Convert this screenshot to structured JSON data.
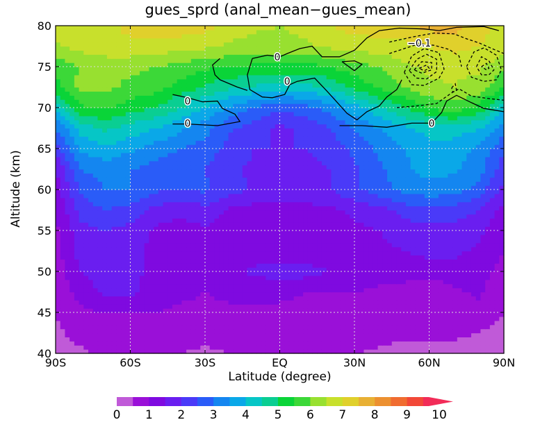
{
  "title": "gues_sprd (anal_mean−gues_mean)",
  "chart_data": {
    "type": "heatmap",
    "title": "gues_sprd (anal_mean−gues_mean)",
    "xlabel": "Latitude (degree)",
    "ylabel": "Altitude (km)",
    "xlim": [
      -90,
      90
    ],
    "ylim": [
      40,
      80
    ],
    "x_ticks": [
      -90,
      -60,
      -30,
      0,
      30,
      60,
      90
    ],
    "x_tick_labels": [
      "90S",
      "60S",
      "30S",
      "EQ",
      "30N",
      "60N",
      "90N"
    ],
    "y_ticks": [
      40,
      45,
      50,
      55,
      60,
      65,
      70,
      75,
      80
    ],
    "y_tick_labels": [
      "40",
      "45",
      "50",
      "55",
      "60",
      "65",
      "70",
      "75",
      "80"
    ],
    "grid": true,
    "colorbar": {
      "levels": [
        0,
        0.5,
        1,
        1.5,
        2,
        2.5,
        3,
        3.5,
        4,
        4.5,
        5,
        5.5,
        6,
        6.5,
        7,
        7.5,
        8,
        8.5,
        9,
        9.5,
        10
      ],
      "tick_labels": [
        "0",
        "1",
        "2",
        "3",
        "4",
        "5",
        "6",
        "7",
        "8",
        "9",
        "10"
      ],
      "colors": [
        "#c05ad8",
        "#9a10d8",
        "#7f0ae0",
        "#6a1ef0",
        "#4a3af8",
        "#2a5cf8",
        "#1486f0",
        "#0aa8e8",
        "#06c6c6",
        "#0ace92",
        "#0ad438",
        "#3cd838",
        "#98e030",
        "#c8e02c",
        "#e0d02c",
        "#e8b034",
        "#ec9030",
        "#f06c30",
        "#f24838",
        "#f22c58"
      ],
      "extend": "max"
    },
    "shaded_field": {
      "x": [
        -90,
        -80,
        -70,
        -60,
        -50,
        -40,
        -30,
        -20,
        -10,
        0,
        10,
        20,
        30,
        40,
        50,
        60,
        70,
        80,
        90
      ],
      "y": [
        40,
        42.5,
        45,
        47.5,
        50,
        52.5,
        55,
        57.5,
        60,
        62.5,
        65,
        67.5,
        70,
        72.5,
        75,
        77.5,
        80
      ],
      "z": [
        [
          0.2,
          0.4,
          0.6,
          0.6,
          0.6,
          0.5,
          0.4,
          0.5,
          0.7,
          0.8,
          0.8,
          0.7,
          0.5,
          0.4,
          0.3,
          0.3,
          0.3,
          0.2,
          0.1
        ],
        [
          0.4,
          0.7,
          0.9,
          0.9,
          0.9,
          0.8,
          0.7,
          0.8,
          0.9,
          0.9,
          0.9,
          0.9,
          0.8,
          0.7,
          0.6,
          0.6,
          0.6,
          0.5,
          0.3
        ],
        [
          0.5,
          0.9,
          1.0,
          1.0,
          1.0,
          0.9,
          0.9,
          0.9,
          0.9,
          0.9,
          0.9,
          0.9,
          0.8,
          0.7,
          0.7,
          0.5,
          0.7,
          0.8,
          0.5
        ],
        [
          0.6,
          1.2,
          1.6,
          1.6,
          1.3,
          1.1,
          1.0,
          1.1,
          1.1,
          1.1,
          1.0,
          1.0,
          1.0,
          0.9,
          0.8,
          0.5,
          0.9,
          1.1,
          0.6
        ],
        [
          0.7,
          1.5,
          1.8,
          1.6,
          1.4,
          1.3,
          1.2,
          1.4,
          1.6,
          1.8,
          1.7,
          1.5,
          1.3,
          1.2,
          1.2,
          1.3,
          1.3,
          1.2,
          0.8
        ],
        [
          0.8,
          1.7,
          1.8,
          1.6,
          1.4,
          1.2,
          1.3,
          1.2,
          1.2,
          1.2,
          1.2,
          1.2,
          1.3,
          1.4,
          1.5,
          1.6,
          1.6,
          1.4,
          1.0
        ],
        [
          0.9,
          1.8,
          2.0,
          1.8,
          1.4,
          1.3,
          1.4,
          1.3,
          1.3,
          1.2,
          1.3,
          1.3,
          1.4,
          1.5,
          1.7,
          1.8,
          1.8,
          1.6,
          1.1
        ],
        [
          1.0,
          2.2,
          2.5,
          2.3,
          1.8,
          1.6,
          1.8,
          1.4,
          1.3,
          1.3,
          1.3,
          1.4,
          1.6,
          1.8,
          2.2,
          2.4,
          2.3,
          2.0,
          1.3
        ],
        [
          1.2,
          2.6,
          3.0,
          3.0,
          2.6,
          2.5,
          2.6,
          2.2,
          1.9,
          1.8,
          1.8,
          2.0,
          2.4,
          2.8,
          3.1,
          3.3,
          3.2,
          2.8,
          1.8
        ],
        [
          1.5,
          3.0,
          3.2,
          3.0,
          2.8,
          2.6,
          2.5,
          2.1,
          1.9,
          1.8,
          1.8,
          2.0,
          2.4,
          2.9,
          3.4,
          3.7,
          3.6,
          3.2,
          2.2
        ],
        [
          2.2,
          3.6,
          3.9,
          3.6,
          3.3,
          3.0,
          2.8,
          2.3,
          2.0,
          2.0,
          2.0,
          2.2,
          2.6,
          3.1,
          3.5,
          3.8,
          3.7,
          3.4,
          2.6
        ],
        [
          3.0,
          4.2,
          4.6,
          4.3,
          4.0,
          3.6,
          3.2,
          2.6,
          2.2,
          1.9,
          2.1,
          2.5,
          3.0,
          3.5,
          3.9,
          4.2,
          4.3,
          4.0,
          3.2
        ],
        [
          4.2,
          5.4,
          5.6,
          5.2,
          5.0,
          4.5,
          4.0,
          3.4,
          2.9,
          2.6,
          2.8,
          3.2,
          3.8,
          4.4,
          5.0,
          5.5,
          5.8,
          5.3,
          4.2
        ],
        [
          5.3,
          6.2,
          6.1,
          5.9,
          5.7,
          5.3,
          4.9,
          4.6,
          4.4,
          4.3,
          4.3,
          4.6,
          5.1,
          5.6,
          6.0,
          6.4,
          6.5,
          6.3,
          5.5
        ],
        [
          5.7,
          6.0,
          6.1,
          6.1,
          6.0,
          5.8,
          5.6,
          5.5,
          5.4,
          5.3,
          5.3,
          5.5,
          5.8,
          6.0,
          6.4,
          6.6,
          6.6,
          6.6,
          6.1
        ],
        [
          6.4,
          6.7,
          6.9,
          6.9,
          6.8,
          6.7,
          6.6,
          6.4,
          6.3,
          6.3,
          6.4,
          6.6,
          6.7,
          6.8,
          6.8,
          7.0,
          7.2,
          7.0,
          6.8
        ],
        [
          6.7,
          6.8,
          6.9,
          7.1,
          7.3,
          7.3,
          7.2,
          6.8,
          6.6,
          6.5,
          6.7,
          7.0,
          7.2,
          7.3,
          7.4,
          7.7,
          7.7,
          7.2,
          6.8
        ]
      ]
    },
    "contour_labels": [
      {
        "text": "0",
        "x": -1,
        "y": 76.2
      },
      {
        "text": "0",
        "x": 3,
        "y": 73.2
      },
      {
        "text": "0",
        "x": -37,
        "y": 70.8
      },
      {
        "text": "0",
        "x": -37,
        "y": 68.1
      },
      {
        "text": "0",
        "x": 61,
        "y": 68.1
      },
      {
        "text": "−0.1",
        "x": 56,
        "y": 77.9
      }
    ],
    "contours": [
      {
        "style": "solid",
        "points": [
          [
            -11,
            76
          ],
          [
            -5,
            76.4
          ],
          [
            0,
            76.2
          ],
          [
            3,
            76.6
          ],
          [
            8,
            77.2
          ],
          [
            13,
            77.5
          ],
          [
            17,
            76.2
          ],
          [
            24,
            76.2
          ],
          [
            30,
            77
          ],
          [
            35,
            78.5
          ],
          [
            40,
            79.4
          ],
          [
            48,
            79.7
          ],
          [
            58,
            79.6
          ],
          [
            64,
            79.4
          ],
          [
            71,
            79.8
          ],
          [
            82,
            79.9
          ],
          [
            88,
            79.4
          ]
        ]
      },
      {
        "style": "solid",
        "points": [
          [
            -11,
            76
          ],
          [
            -13,
            74
          ],
          [
            -12,
            72.2
          ],
          [
            -7,
            71.3
          ],
          [
            -3,
            71.2
          ],
          [
            2,
            71.6
          ],
          [
            4,
            72.8
          ],
          [
            7,
            73.2
          ],
          [
            14,
            73.6
          ],
          [
            19,
            72
          ],
          [
            22,
            71
          ],
          [
            27,
            69.3
          ],
          [
            31,
            68.5
          ],
          [
            35,
            69.5
          ],
          [
            40,
            70.2
          ],
          [
            43,
            71.3
          ],
          [
            47,
            72.2
          ],
          [
            49,
            73.4
          ]
        ]
      },
      {
        "style": "solid",
        "points": [
          [
            -43,
            71.6
          ],
          [
            -37,
            71.2
          ],
          [
            -31,
            70.7
          ],
          [
            -25,
            70.8
          ],
          [
            -23,
            69.9
          ],
          [
            -18,
            69.2
          ],
          [
            -16,
            68.3
          ],
          [
            -25,
            67.8
          ],
          [
            -37,
            68
          ],
          [
            -43,
            68
          ]
        ]
      },
      {
        "style": "solid",
        "points": [
          [
            -24,
            76
          ],
          [
            -27,
            75.2
          ],
          [
            -26,
            74
          ],
          [
            -24,
            73.4
          ],
          [
            -17,
            72.5
          ],
          [
            -13,
            72.1
          ]
        ]
      },
      {
        "style": "solid",
        "points": [
          [
            25,
            75.6
          ],
          [
            30,
            75.7
          ],
          [
            33,
            75.3
          ],
          [
            30,
            74.5
          ],
          [
            25,
            75.6
          ]
        ]
      },
      {
        "style": "solid",
        "points": [
          [
            24,
            67.8
          ],
          [
            33,
            67.8
          ],
          [
            43,
            67.6
          ],
          [
            53,
            68.1
          ],
          [
            61,
            68.1
          ],
          [
            65,
            69.4
          ],
          [
            67,
            70.8
          ],
          [
            71,
            71.5
          ],
          [
            77,
            70.6
          ],
          [
            82,
            69.9
          ],
          [
            88,
            69.6
          ],
          [
            90,
            69.5
          ]
        ]
      },
      {
        "style": "dashed",
        "points": [
          [
            44,
            78
          ],
          [
            53,
            78.6
          ],
          [
            62,
            79.1
          ],
          [
            70,
            79
          ],
          [
            75,
            78.4
          ],
          [
            80,
            77.9
          ],
          [
            86,
            77.1
          ],
          [
            90,
            76.6
          ]
        ]
      },
      {
        "style": "dashed",
        "points": [
          [
            44,
            76.6
          ],
          [
            50,
            77.2
          ],
          [
            56,
            77.8
          ],
          [
            62,
            77.6
          ],
          [
            68,
            77.1
          ],
          [
            72,
            76.3
          ],
          [
            73,
            75
          ]
        ]
      },
      {
        "style": "dashed",
        "points": [
          [
            50,
            74.3
          ],
          [
            53,
            76.3
          ],
          [
            58,
            77.2
          ],
          [
            64,
            76.7
          ],
          [
            66,
            74.7
          ],
          [
            64,
            73.6
          ],
          [
            58,
            72.7
          ],
          [
            53,
            72.8
          ],
          [
            50,
            74.3
          ]
        ]
      },
      {
        "style": "dashed",
        "points": [
          [
            52,
            74.5
          ],
          [
            55,
            75.9
          ],
          [
            59,
            76.5
          ],
          [
            63,
            75.9
          ],
          [
            63,
            74.4
          ],
          [
            59,
            73.5
          ],
          [
            55,
            73.6
          ],
          [
            52,
            74.5
          ]
        ]
      },
      {
        "style": "dashed",
        "points": [
          [
            54,
            74.6
          ],
          [
            57,
            75.6
          ],
          [
            61,
            75.5
          ],
          [
            61,
            74.6
          ],
          [
            57,
            74.2
          ],
          [
            54,
            74.6
          ]
        ]
      },
      {
        "style": "dashed",
        "points": [
          [
            56,
            74.8
          ],
          [
            59,
            75.2
          ],
          [
            60,
            74.8
          ],
          [
            58,
            74.5
          ],
          [
            56,
            74.8
          ]
        ]
      },
      {
        "style": "dashed",
        "points": [
          [
            75,
            75
          ],
          [
            78,
            76.8
          ],
          [
            82,
            77.3
          ],
          [
            87,
            76.4
          ],
          [
            89,
            74.6
          ],
          [
            87,
            73.4
          ],
          [
            82,
            73.2
          ],
          [
            77,
            73.7
          ],
          [
            75,
            75
          ]
        ]
      },
      {
        "style": "dashed",
        "points": [
          [
            79,
            75
          ],
          [
            81,
            76.2
          ],
          [
            84,
            75.7
          ],
          [
            86,
            74.6
          ],
          [
            84,
            74
          ],
          [
            81,
            74
          ],
          [
            79,
            75
          ]
        ]
      },
      {
        "style": "dashed",
        "points": [
          [
            81,
            75
          ],
          [
            83,
            75.4
          ],
          [
            84,
            74.8
          ],
          [
            83,
            74.6
          ],
          [
            81,
            75
          ]
        ]
      },
      {
        "style": "dashed",
        "points": [
          [
            47,
            70
          ],
          [
            55,
            70.2
          ],
          [
            63,
            70.5
          ],
          [
            69,
            71.8
          ],
          [
            72,
            72.3
          ],
          [
            77,
            71.4
          ],
          [
            84,
            71.1
          ],
          [
            90,
            70.9
          ]
        ]
      },
      {
        "style": "dashed",
        "points": [
          [
            69,
            72.4
          ],
          [
            70.5,
            72.9
          ],
          [
            71,
            72.1
          ],
          [
            69.5,
            71.9
          ],
          [
            69,
            72.4
          ]
        ]
      }
    ]
  }
}
